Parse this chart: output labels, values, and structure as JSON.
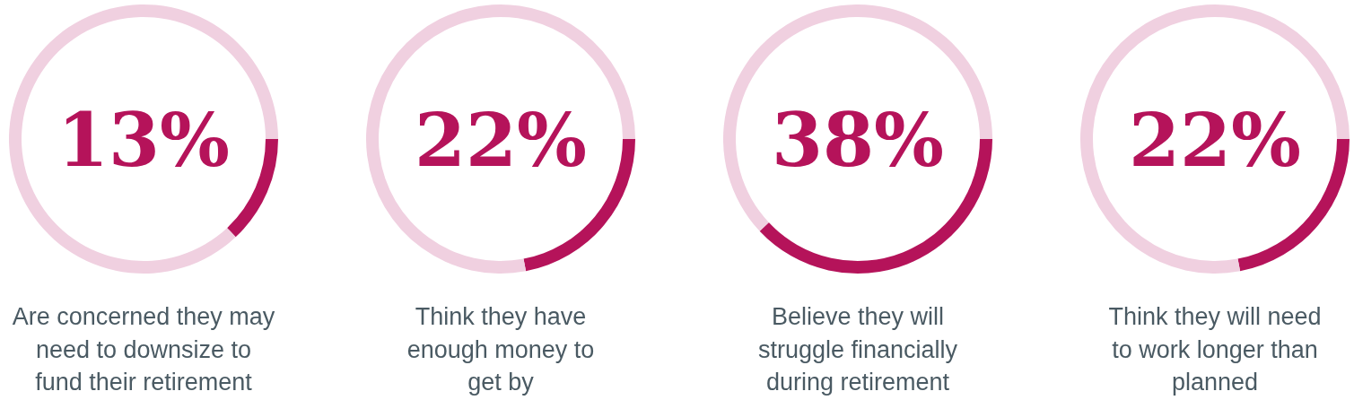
{
  "chart_data": [
    {
      "type": "donut",
      "title": "Are concerned they may\nneed to downsize to\nfund their retirement",
      "categories": [
        null,
        null
      ],
      "values": [
        13,
        87
      ],
      "colors": [
        "#b5135a",
        "#f0d0e0"
      ],
      "annotations": [
        "13%"
      ]
    },
    {
      "type": "donut",
      "title": "Think they have\nenough money to\nget by",
      "categories": [
        null,
        null
      ],
      "values": [
        22,
        78
      ],
      "colors": [
        "#b5135a",
        "#f0d0e0"
      ],
      "annotations": [
        "22%"
      ]
    },
    {
      "type": "donut",
      "title": "Believe they will\nstruggle financially\nduring retirement",
      "categories": [
        null,
        null
      ],
      "values": [
        38,
        62
      ],
      "colors": [
        "#b5135a",
        "#f0d0e0"
      ],
      "annotations": [
        "38%"
      ]
    },
    {
      "type": "donut",
      "title": "Think they will need\nto work longer than\nplanned",
      "categories": [
        null,
        null
      ],
      "values": [
        22,
        78
      ],
      "colors": [
        "#b5135a",
        "#f0d0e0"
      ],
      "annotations": [
        "22%"
      ]
    }
  ]
}
